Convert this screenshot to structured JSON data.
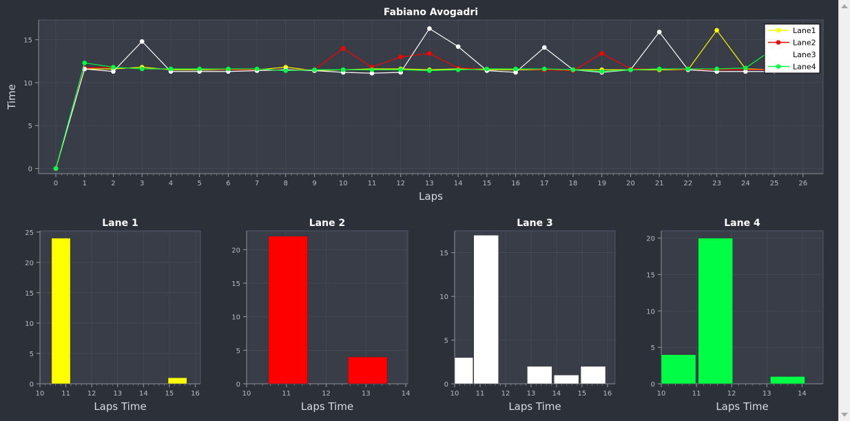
{
  "colors": {
    "background": "#2c3038",
    "plot_bg": "#383d47",
    "grid": "#4a505c",
    "text": "#e6e6e6",
    "lane1": "#ffff00",
    "lane2": "#ff0000",
    "lane3": "#ffffff",
    "lane4": "#00ff44"
  },
  "chart_data": [
    {
      "type": "line",
      "title": "Fabiano Avogadri",
      "xlabel": "Laps",
      "ylabel": "Time",
      "xlim": [
        -0.6,
        26.7
      ],
      "ylim": [
        -0.6,
        17.3
      ],
      "xticks": [
        0,
        1,
        2,
        3,
        4,
        5,
        6,
        7,
        8,
        9,
        10,
        11,
        12,
        13,
        14,
        15,
        16,
        17,
        18,
        19,
        20,
        21,
        22,
        23,
        24,
        25,
        26
      ],
      "yticks": [
        0,
        5,
        10,
        15
      ],
      "legend_position": "top-right",
      "grid": true,
      "series": [
        {
          "name": "Lane1",
          "color": "#ffff00",
          "x": [
            0,
            1,
            2,
            3,
            4,
            5,
            6,
            7,
            8,
            9,
            10,
            11,
            12,
            13,
            14,
            15,
            16,
            17,
            18,
            19,
            20,
            21,
            22,
            23,
            24,
            25
          ],
          "y": [
            0,
            11.6,
            11.6,
            11.8,
            11.5,
            11.5,
            11.5,
            11.5,
            11.8,
            11.4,
            11.5,
            11.6,
            11.6,
            11.5,
            11.6,
            11.5,
            11.5,
            11.5,
            11.5,
            11.5,
            11.5,
            11.5,
            11.5,
            16.1,
            11.6,
            11.5
          ]
        },
        {
          "name": "Lane2",
          "color": "#ff0000",
          "x": [
            0,
            1,
            2,
            3,
            4,
            5,
            6,
            7,
            8,
            9,
            10,
            11,
            12,
            13,
            14,
            15,
            16,
            17,
            18,
            19,
            20,
            21,
            22,
            23,
            24,
            25
          ],
          "y": [
            0,
            11.7,
            11.8,
            11.6,
            11.6,
            11.6,
            11.5,
            11.5,
            11.5,
            11.5,
            14.0,
            11.8,
            13.0,
            13.4,
            11.7,
            11.6,
            11.6,
            11.5,
            11.4,
            13.4,
            11.6,
            11.6,
            11.5,
            11.5,
            11.5,
            11.5
          ]
        },
        {
          "name": "Lane3",
          "color": "#ffffff",
          "x": [
            0,
            1,
            2,
            3,
            4,
            5,
            6,
            7,
            8,
            9,
            10,
            11,
            12,
            13,
            14,
            15,
            16,
            17,
            18,
            19,
            20,
            21,
            22,
            23,
            24,
            25
          ],
          "y": [
            0,
            11.6,
            11.3,
            14.8,
            11.3,
            11.3,
            11.3,
            11.4,
            11.5,
            11.4,
            11.2,
            11.1,
            11.2,
            16.3,
            14.2,
            11.4,
            11.2,
            14.1,
            11.5,
            11.2,
            11.5,
            15.9,
            11.5,
            11.3,
            11.3,
            11.3
          ]
        },
        {
          "name": "Lane4",
          "color": "#00ff44",
          "x": [
            0,
            1,
            2,
            3,
            4,
            5,
            6,
            7,
            8,
            9,
            10,
            11,
            12,
            13,
            14,
            15,
            16,
            17,
            18,
            19,
            20,
            21,
            22,
            23,
            24,
            25
          ],
          "y": [
            0,
            12.3,
            11.8,
            11.6,
            11.6,
            11.6,
            11.6,
            11.6,
            11.4,
            11.5,
            11.5,
            11.5,
            11.5,
            11.4,
            11.5,
            11.6,
            11.6,
            11.6,
            11.5,
            11.3,
            11.5,
            11.6,
            11.6,
            11.6,
            11.7,
            14.0
          ]
        }
      ]
    },
    {
      "type": "bar",
      "title": "Lane 1",
      "xlabel": "Laps Time",
      "color": "#ffff00",
      "xlim": [
        10,
        16.2
      ],
      "ylim": [
        0,
        25.2
      ],
      "xticks": [
        10,
        11,
        12,
        13,
        14,
        15,
        16
      ],
      "yticks": [
        0,
        5,
        10,
        15,
        20,
        25
      ],
      "bins": [
        {
          "x0": 10.45,
          "x1": 11.2,
          "count": 24
        },
        {
          "x0": 14.95,
          "x1": 15.7,
          "count": 1
        }
      ]
    },
    {
      "type": "bar",
      "title": "Lane 2",
      "xlabel": "Laps Time",
      "color": "#ff0000",
      "xlim": [
        10,
        14.05
      ],
      "ylim": [
        0,
        22.8
      ],
      "xticks": [
        10,
        11,
        12,
        13,
        14
      ],
      "yticks": [
        0,
        5,
        10,
        15,
        20
      ],
      "bins": [
        {
          "x0": 10.55,
          "x1": 11.55,
          "count": 22
        },
        {
          "x0": 12.55,
          "x1": 13.55,
          "count": 4
        }
      ]
    },
    {
      "type": "bar",
      "title": "Lane 3",
      "xlabel": "Laps Time",
      "color": "#ffffff",
      "xlim": [
        10,
        16.3
      ],
      "ylim": [
        0,
        17.5
      ],
      "xticks": [
        10,
        11,
        12,
        13,
        14,
        15,
        16
      ],
      "yticks": [
        0,
        5,
        10,
        15
      ],
      "bins": [
        {
          "x0": 10.0,
          "x1": 10.75,
          "count": 3
        },
        {
          "x0": 10.75,
          "x1": 11.75,
          "count": 17
        },
        {
          "x0": 12.85,
          "x1": 13.85,
          "count": 2
        },
        {
          "x0": 13.9,
          "x1": 14.9,
          "count": 1
        },
        {
          "x0": 14.95,
          "x1": 15.95,
          "count": 2
        }
      ]
    },
    {
      "type": "bar",
      "title": "Lane 4",
      "xlabel": "Laps Time",
      "color": "#00ff44",
      "xlim": [
        10,
        14.6
      ],
      "ylim": [
        0,
        21
      ],
      "xticks": [
        10,
        11,
        12,
        13,
        14
      ],
      "yticks": [
        0,
        5,
        10,
        15,
        20
      ],
      "bins": [
        {
          "x0": 10.0,
          "x1": 11.0,
          "count": 4
        },
        {
          "x0": 11.05,
          "x1": 12.05,
          "count": 20
        },
        {
          "x0": 13.1,
          "x1": 14.1,
          "count": 1
        }
      ]
    }
  ]
}
